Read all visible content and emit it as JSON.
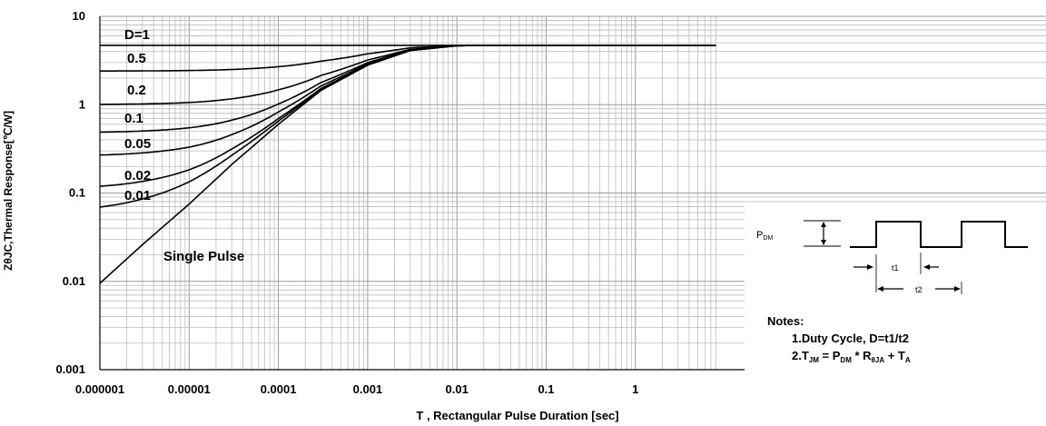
{
  "chart_data": {
    "type": "line",
    "title": "",
    "xlabel": "T , Rectangular Pulse Duration [sec]",
    "ylabel": "ZθJC,Thermal Response[℃/W]",
    "xscale": "log",
    "yscale": "log",
    "xlim": [
      1e-06,
      8
    ],
    "ylim": [
      0.001,
      10
    ],
    "grid": true,
    "x_ticks": [
      "0.000001",
      "0.00001",
      "0.0001",
      "0.001",
      "0.01",
      "0.1",
      "1"
    ],
    "y_ticks": [
      "10",
      "1",
      "0.1",
      "0.01",
      "0.001"
    ],
    "steady_state": 4.7,
    "series": [
      {
        "name": "D=1",
        "D": 1,
        "y0": 4.7
      },
      {
        "name": "0.5",
        "D": 0.5,
        "y0": 2.4
      },
      {
        "name": "0.2",
        "D": 0.2,
        "y0": 1.0
      },
      {
        "name": "0.1",
        "D": 0.1,
        "y0": 0.48
      },
      {
        "name": "0.05",
        "D": 0.05,
        "y0": 0.26
      },
      {
        "name": "0.02",
        "D": 0.02,
        "y0": 0.11
      },
      {
        "name": "0.01",
        "D": 0.01,
        "y0": 0.06
      },
      {
        "name": "Single Pulse",
        "D": 0,
        "y0": 0.0095
      }
    ],
    "x_samples": [
      1e-06,
      3e-06,
      1e-05,
      3e-05,
      0.0001,
      0.0003,
      0.001,
      0.003,
      0.01,
      0.03,
      0.1,
      1,
      8
    ],
    "single_pulse_values": [
      0.0095,
      0.026,
      0.075,
      0.21,
      0.6,
      1.45,
      2.8,
      4.1,
      4.65,
      4.7,
      4.7,
      4.7,
      4.7
    ]
  },
  "inset": {
    "pdm_label": "P",
    "pdm_sub": "DM",
    "t1_label": "t1",
    "t2_label": "t2",
    "notes_title": "Notes:",
    "note1": "1.Duty  Cycle, D=t1/t2",
    "note2_pre": "2.T",
    "note2_sub1": "JM",
    "note2_mid1": " = P",
    "note2_sub2": "DM",
    "note2_mid2": " * R",
    "note2_sub3": "θJA",
    "note2_mid3": " + T",
    "note2_sub4": "A"
  }
}
